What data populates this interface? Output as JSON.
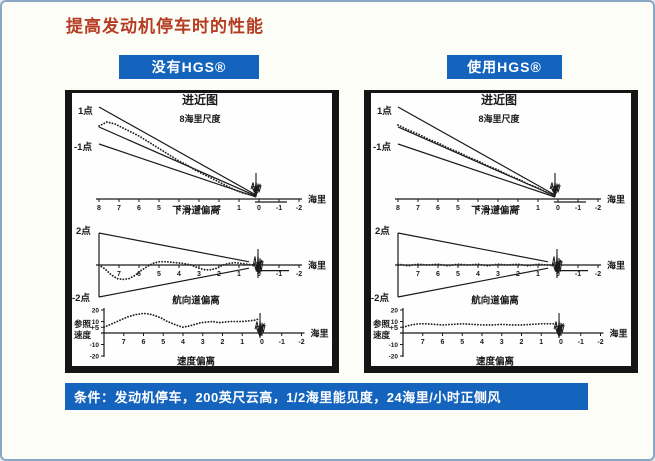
{
  "page": {
    "title": "提高发动机停车时的性能"
  },
  "colors": {
    "accent_blue": "#1464be",
    "title_red": "#b43c22",
    "chart_ink": "#1a1a1a"
  },
  "headers": {
    "left": "没有HGS®",
    "right": "使用HGS®"
  },
  "condition_bar": "条件：发动机停车，200英尺云高，1/2海里能见度，24海里/小时正侧风",
  "chart_data": [
    {
      "panel": "without-hgs",
      "charts": [
        {
          "type": "line",
          "title": "进近图",
          "subtitle": "8海里尺度",
          "side_top": "1点",
          "side_bottom": "-1点",
          "x_unit": "海里",
          "bottom_label": "下滑道偏离",
          "xticks": [
            "8",
            "7",
            "6",
            "5",
            "4",
            "3",
            "2",
            "1",
            "0",
            "-1",
            "-2"
          ],
          "xlim": [
            8,
            -2
          ],
          "solid_lines": [
            [
              [
                8,
                92
              ],
              [
                0.15,
                4
              ]
            ],
            [
              [
                8,
                72
              ],
              [
                0.15,
                3
              ]
            ],
            [
              [
                8,
                55
              ],
              [
                0.15,
                2
              ]
            ],
            [
              [
                0.2,
                -3
              ],
              [
                -1.4,
                -3
              ]
            ]
          ],
          "dotted": [
            [
              8,
              73
            ],
            [
              7.6,
              77
            ],
            [
              7.2,
              75
            ],
            [
              6.8,
              71
            ],
            [
              6.4,
              67
            ],
            [
              6,
              63
            ],
            [
              5.6,
              58
            ],
            [
              5.2,
              53
            ],
            [
              4.8,
              48
            ],
            [
              4.4,
              43
            ],
            [
              4,
              38
            ],
            [
              3.6,
              34
            ],
            [
              3.2,
              29
            ],
            [
              2.8,
              25
            ],
            [
              2.4,
              21
            ],
            [
              2,
              17
            ],
            [
              1.6,
              13
            ],
            [
              1.2,
              9
            ],
            [
              0.8,
              6
            ],
            [
              0.4,
              4
            ],
            [
              0.2,
              3
            ]
          ],
          "marker_x": 0.15
        },
        {
          "type": "line",
          "side_top": "2点",
          "side_bottom": "-2点",
          "x_unit": "海里",
          "bottom_label": "航向道偏离",
          "xticks": [
            "7",
            "6",
            "5",
            "4",
            "3",
            "2",
            "1",
            "0",
            "-1",
            "-2"
          ],
          "xlim": [
            8,
            -2
          ],
          "solid_lines": [
            [
              [
                8,
                2
              ],
              [
                8,
                -2
              ]
            ],
            [
              [
                8,
                2
              ],
              [
                0.5,
                0.2
              ]
            ],
            [
              [
                8,
                -2
              ],
              [
                0.5,
                -0.2
              ]
            ],
            [
              [
                0.1,
                -0.35
              ],
              [
                -1.5,
                -0.35
              ]
            ]
          ],
          "dotted": [
            [
              8,
              0
            ],
            [
              7.7,
              -0.25
            ],
            [
              7.4,
              -0.6
            ],
            [
              7.1,
              -0.85
            ],
            [
              6.8,
              -0.9
            ],
            [
              6.5,
              -0.85
            ],
            [
              6.2,
              -0.65
            ],
            [
              5.9,
              -0.35
            ],
            [
              5.6,
              -0.1
            ],
            [
              5.3,
              0.1
            ],
            [
              5,
              0.2
            ],
            [
              4.6,
              0.2
            ],
            [
              4.2,
              0.15
            ],
            [
              3.8,
              0.1
            ],
            [
              3.4,
              0
            ],
            [
              3,
              -0.2
            ],
            [
              2.7,
              -0.3
            ],
            [
              2.4,
              -0.3
            ],
            [
              2.1,
              -0.2
            ],
            [
              1.8,
              0
            ],
            [
              1.5,
              0.1
            ],
            [
              1.2,
              0.15
            ],
            [
              0.9,
              0.1
            ],
            [
              0.6,
              0.05
            ],
            [
              0.3,
              0
            ]
          ],
          "marker_x": 0.05
        },
        {
          "type": "line",
          "left_label": [
            "参照",
            "速度"
          ],
          "x_unit": "海里",
          "bottom_label": "速度偏离",
          "xticks": [
            "7",
            "6",
            "5",
            "4",
            "3",
            "2",
            "1",
            "0",
            "-1",
            "-2"
          ],
          "xlim": [
            8,
            -2
          ],
          "yticks": [
            {
              "v": 20,
              "label": "20",
              "bold": false
            },
            {
              "v": 10,
              "label": "10",
              "bold": false
            },
            {
              "v": 5,
              "label": "+5",
              "bold": true
            },
            {
              "v": -10,
              "label": "-10",
              "bold": false
            },
            {
              "v": -20,
              "label": "-20",
              "bold": false
            }
          ],
          "solid_lines": [],
          "dotted": [
            [
              8,
              5
            ],
            [
              7.6,
              8
            ],
            [
              7.2,
              11
            ],
            [
              6.8,
              14
            ],
            [
              6.4,
              16
            ],
            [
              6,
              17
            ],
            [
              5.7,
              16.5
            ],
            [
              5.4,
              15
            ],
            [
              5.1,
              13
            ],
            [
              4.8,
              10
            ],
            [
              4.5,
              8
            ],
            [
              4.2,
              6
            ],
            [
              4,
              5
            ],
            [
              3.7,
              6
            ],
            [
              3.4,
              7.5
            ],
            [
              3.1,
              9
            ],
            [
              2.8,
              9.5
            ],
            [
              2.5,
              10
            ],
            [
              2.2,
              9
            ],
            [
              1.9,
              9.5
            ],
            [
              1.6,
              10
            ],
            [
              1.3,
              10
            ],
            [
              1,
              10
            ],
            [
              0.7,
              10.5
            ],
            [
              0.4,
              11
            ],
            [
              0.2,
              12
            ]
          ],
          "marker_x": 0.1
        }
      ]
    },
    {
      "panel": "with-hgs",
      "charts": [
        {
          "type": "line",
          "title": "进近图",
          "subtitle": "8海里尺度",
          "side_top": "1点",
          "side_bottom": "-1点",
          "x_unit": "海里",
          "bottom_label": "下滑道偏离",
          "xticks": [
            "8",
            "7",
            "6",
            "5",
            "4",
            "3",
            "2",
            "1",
            "0",
            "-1",
            "-2"
          ],
          "xlim": [
            8,
            -2
          ],
          "solid_lines": [
            [
              [
                8,
                92
              ],
              [
                0.15,
                4
              ]
            ],
            [
              [
                8,
                72
              ],
              [
                0.15,
                3
              ]
            ],
            [
              [
                8,
                55
              ],
              [
                0.15,
                2
              ]
            ],
            [
              [
                0.2,
                -3
              ],
              [
                -1.4,
                -3
              ]
            ]
          ],
          "dotted": [
            [
              8,
              74
            ],
            [
              7.5,
              69
            ],
            [
              7,
              65
            ],
            [
              6.5,
              60
            ],
            [
              6,
              56
            ],
            [
              5.5,
              51
            ],
            [
              5,
              47
            ],
            [
              4.5,
              42
            ],
            [
              4,
              38
            ],
            [
              3.5,
              33
            ],
            [
              3,
              29
            ],
            [
              2.5,
              24
            ],
            [
              2,
              20
            ],
            [
              1.5,
              15
            ],
            [
              1,
              11
            ],
            [
              0.5,
              6
            ],
            [
              0.2,
              4
            ]
          ],
          "marker_x": 0.15
        },
        {
          "type": "line",
          "side_top": "2点",
          "side_bottom": "-2点",
          "x_unit": "海里",
          "bottom_label": "航向道偏离",
          "xticks": [
            "7",
            "6",
            "5",
            "4",
            "3",
            "2",
            "1",
            "0",
            "-1",
            "-2"
          ],
          "xlim": [
            8,
            -2
          ],
          "solid_lines": [
            [
              [
                8,
                2
              ],
              [
                8,
                -2
              ]
            ],
            [
              [
                8,
                2
              ],
              [
                0.5,
                0.2
              ]
            ],
            [
              [
                8,
                -2
              ],
              [
                0.5,
                -0.2
              ]
            ],
            [
              [
                0.1,
                -0.35
              ],
              [
                -1.5,
                -0.35
              ]
            ]
          ],
          "dotted": [
            [
              8,
              0.05
            ],
            [
              7.5,
              -0.05
            ],
            [
              7,
              0.05
            ],
            [
              6.5,
              0
            ],
            [
              6,
              0.05
            ],
            [
              5.5,
              -0.05
            ],
            [
              5,
              0.05
            ],
            [
              4.5,
              0
            ],
            [
              4,
              0.05
            ],
            [
              3.5,
              -0.05
            ],
            [
              3,
              0.05
            ],
            [
              2.5,
              0
            ],
            [
              2,
              0.05
            ],
            [
              1.5,
              -0.05
            ],
            [
              1,
              0.05
            ],
            [
              0.5,
              0
            ],
            [
              0.2,
              0
            ]
          ],
          "marker_x": 0.05
        },
        {
          "type": "line",
          "left_label": [
            "参照",
            "速度"
          ],
          "x_unit": "海里",
          "bottom_label": "速度偏离",
          "xticks": [
            "7",
            "6",
            "5",
            "4",
            "3",
            "2",
            "1",
            "0",
            "-1",
            "-2"
          ],
          "xlim": [
            8,
            -2
          ],
          "yticks": [
            {
              "v": 20,
              "label": "20",
              "bold": false
            },
            {
              "v": 10,
              "label": "10",
              "bold": false
            },
            {
              "v": 5,
              "label": "+5",
              "bold": true
            },
            {
              "v": -10,
              "label": "-10",
              "bold": false
            },
            {
              "v": -20,
              "label": "-20",
              "bold": false
            }
          ],
          "solid_lines": [],
          "dotted": [
            [
              8,
              5
            ],
            [
              7.6,
              7
            ],
            [
              7.2,
              8
            ],
            [
              6.8,
              8
            ],
            [
              6.4,
              7.5
            ],
            [
              6,
              7
            ],
            [
              5.5,
              7.5
            ],
            [
              5,
              8
            ],
            [
              4.5,
              7.5
            ],
            [
              4,
              7
            ],
            [
              3.5,
              7
            ],
            [
              3,
              7.5
            ],
            [
              2.5,
              7
            ],
            [
              2,
              7
            ],
            [
              1.5,
              7.5
            ],
            [
              1,
              8
            ],
            [
              0.6,
              8
            ],
            [
              0.2,
              8
            ]
          ],
          "marker_x": 0.1
        }
      ]
    }
  ]
}
